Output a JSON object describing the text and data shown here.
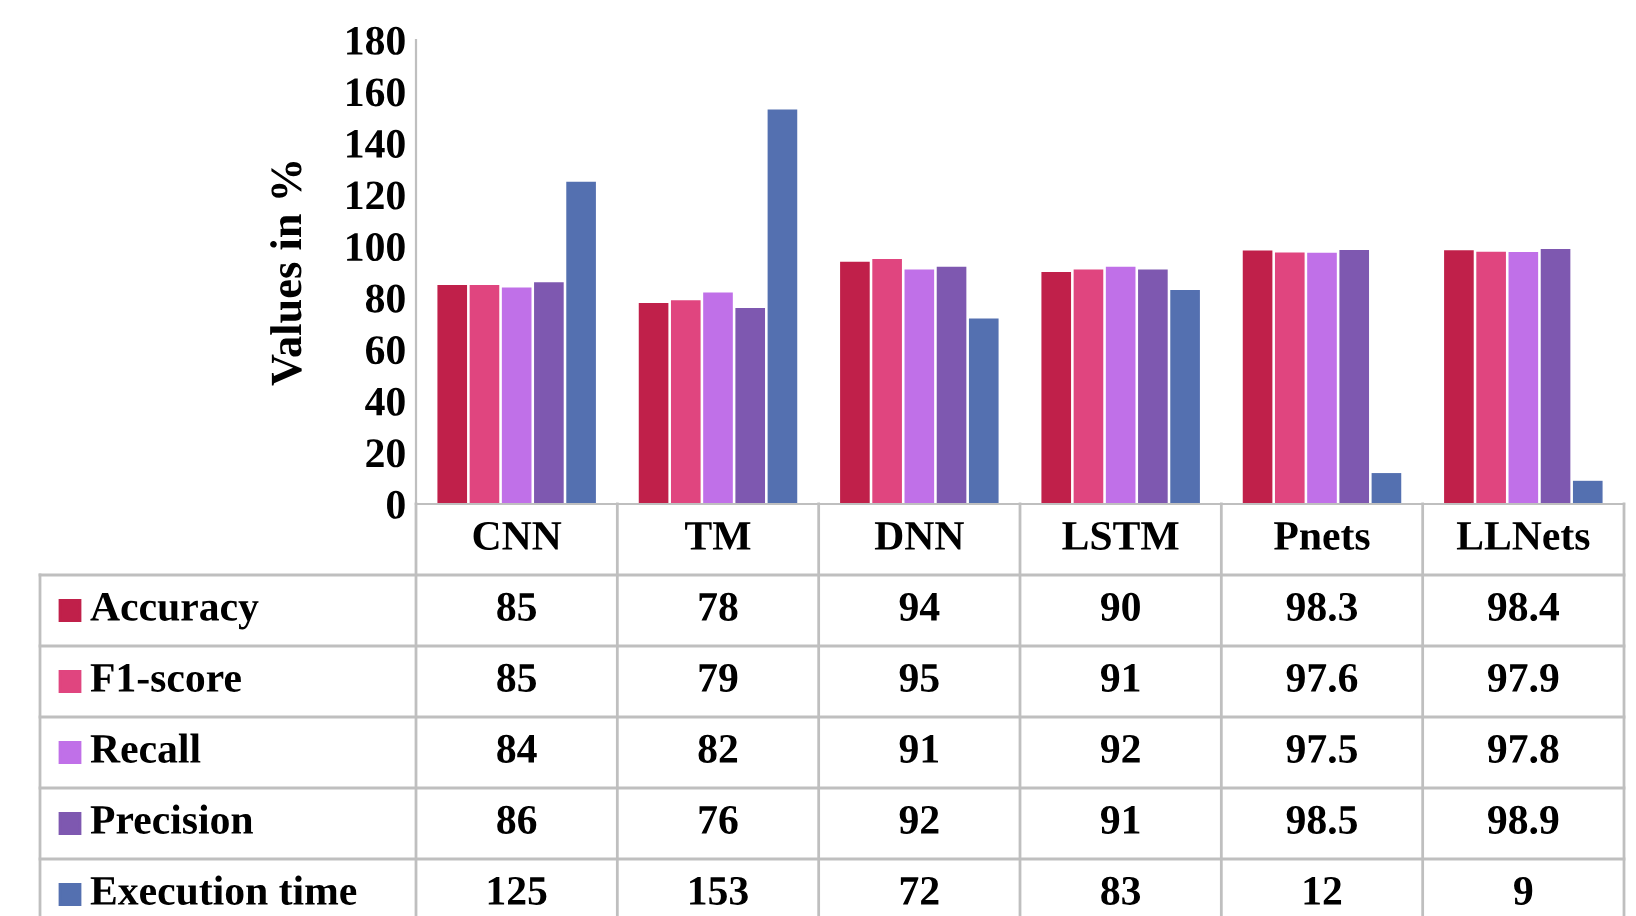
{
  "chart_data": {
    "type": "bar",
    "ylabel": "Values in %",
    "categories": [
      "CNN",
      "TM",
      "DNN",
      "LSTM",
      "Pnets",
      "LLNets"
    ],
    "series": [
      {
        "name": "Accuracy",
        "color": "#c0204a",
        "values": [
          85,
          78,
          94,
          90,
          98.3,
          98.4
        ]
      },
      {
        "name": "F1-score",
        "color": "#e0457f",
        "values": [
          85,
          79,
          95,
          91,
          97.6,
          97.9
        ]
      },
      {
        "name": "Recall",
        "color": "#c070e8",
        "values": [
          84,
          82,
          91,
          92,
          97.5,
          97.8
        ]
      },
      {
        "name": "Precision",
        "color": "#7e58b0",
        "values": [
          86,
          76,
          92,
          91,
          98.5,
          98.9
        ]
      },
      {
        "name": "Execution time",
        "color": "#5470b0",
        "values": [
          125,
          153,
          72,
          83,
          12,
          9
        ]
      }
    ],
    "ylim": [
      0,
      180
    ],
    "yticks": [
      0,
      20,
      40,
      60,
      80,
      100,
      120,
      140,
      160,
      180
    ],
    "grid": false,
    "data_labels": true,
    "legend": "left"
  }
}
